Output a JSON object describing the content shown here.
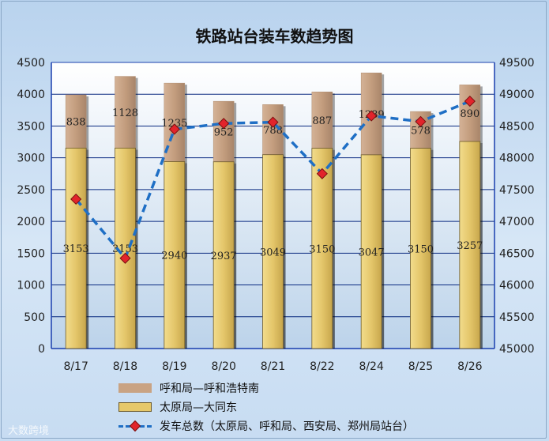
{
  "chart_data": {
    "type": "bar",
    "title": "铁路站台装车数趋势图",
    "categories": [
      "8/17",
      "8/18",
      "8/19",
      "8/20",
      "8/21",
      "8/22",
      "8/24",
      "8/25",
      "8/26"
    ],
    "series": [
      {
        "name": "太原局—大同东",
        "type": "bar",
        "stack": "main",
        "axis": "left",
        "values": [
          3153,
          3153,
          2940,
          2937,
          3049,
          3150,
          3047,
          3150,
          3257
        ],
        "labels": [
          "3153",
          "3153",
          "2940",
          "2937",
          "3049",
          "3150",
          "3047",
          "3150",
          "3257"
        ],
        "color": "#e6c86a"
      },
      {
        "name": "呼和局—呼和浩特南",
        "type": "bar",
        "stack": "main",
        "axis": "left",
        "values": [
          838,
          1128,
          1235,
          952,
          788,
          887,
          1289,
          578,
          890
        ],
        "labels": [
          "838",
          "1128",
          "1235",
          "952",
          "788",
          "887",
          "1289",
          "578",
          "890"
        ],
        "color": "#c9a383"
      },
      {
        "name": "发车总数（太原局、呼和局、西安局、郑州局站台）",
        "type": "line",
        "axis": "right",
        "values": [
          47350,
          46420,
          48450,
          48540,
          48560,
          47750,
          48660,
          48570,
          48890
        ],
        "color": "#1f6fc5",
        "marker_color": "#e2242b"
      }
    ],
    "y_left": {
      "min": 0,
      "max": 4500,
      "ticks": [
        "0",
        "500",
        "1000",
        "1500",
        "2000",
        "2500",
        "3000",
        "3500",
        "4000",
        "4500"
      ]
    },
    "y_right": {
      "min": 45000,
      "max": 49500,
      "ticks": [
        "45000",
        "45500",
        "46000",
        "46500",
        "47000",
        "47500",
        "48000",
        "48500",
        "49000",
        "49500"
      ]
    },
    "grid": true,
    "legend_position": "bottom"
  },
  "watermark": "大数跨境"
}
